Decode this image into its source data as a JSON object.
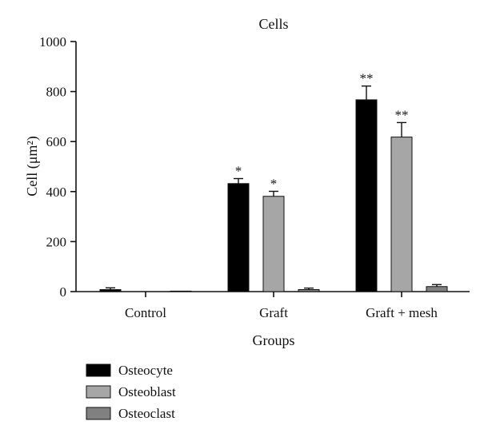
{
  "chart_data": {
    "type": "bar",
    "title": "Cells",
    "xlabel": "Groups",
    "ylabel": "Cell (μm²)",
    "ylim": [
      0,
      1000
    ],
    "yticks": [
      0,
      200,
      400,
      600,
      800,
      1000
    ],
    "categories": [
      "Control",
      "Graft",
      "Graft + mesh"
    ],
    "series": [
      {
        "name": "Osteocyte",
        "color": "#000000",
        "values": [
          8,
          432,
          767
        ],
        "errors": [
          7,
          20,
          55
        ],
        "annotations": [
          "",
          "*",
          "**"
        ]
      },
      {
        "name": "Osteoblast",
        "color": "#a6a6a6",
        "values": [
          0,
          381,
          618
        ],
        "errors": [
          0,
          20,
          58
        ],
        "annotations": [
          "",
          "*",
          "**"
        ]
      },
      {
        "name": "Osteoclast",
        "color": "#808080",
        "values": [
          2,
          8,
          20
        ],
        "errors": [
          0,
          6,
          8
        ],
        "annotations": [
          "",
          "",
          ""
        ]
      }
    ],
    "grid": false,
    "legend_position": "bottom-left"
  }
}
